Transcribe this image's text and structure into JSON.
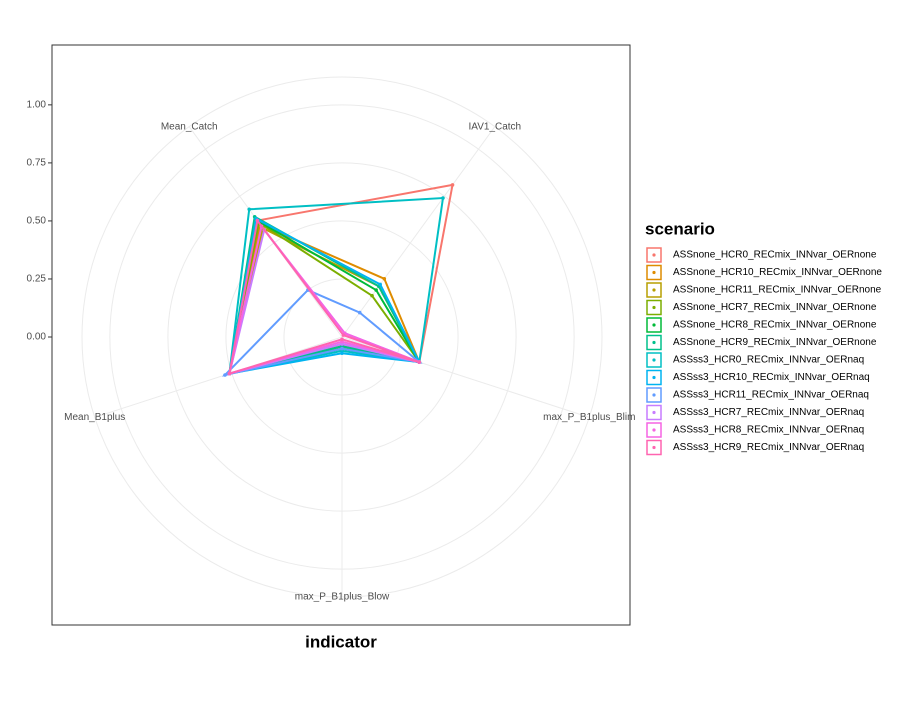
{
  "chart_data": {
    "type": "radar",
    "x_label": "indicator",
    "legend_title": "scenario",
    "categories": [
      "Mean_Catch",
      "IAV1_Catch",
      "max_P_B1plus_Blim",
      "max_P_B1plus_Blow",
      "Mean_B1plus"
    ],
    "ylim": [
      0,
      1.12
    ],
    "yticks": [
      {
        "value": 0,
        "label": "0.00"
      },
      {
        "value": 0.25,
        "label": "0.25"
      },
      {
        "value": 0.5,
        "label": "0.50"
      },
      {
        "value": 0.75,
        "label": "0.75"
      },
      {
        "value": 1,
        "label": "1.00"
      }
    ],
    "grid": true,
    "legend": "right",
    "series": [
      {
        "name": "ASSnone_HCR0_RECmix_INNvar_OERnone",
        "color": "#F8766D",
        "values": [
          0.62,
          0.81,
          0.35,
          0.03,
          0.51
        ]
      },
      {
        "name": "ASSnone_HCR10_RECmix_INNvar_OERnone",
        "color": "#DE8C00",
        "values": [
          0.6,
          0.31,
          0.35,
          0.04,
          0.51
        ]
      },
      {
        "name": "ASSnone_HCR11_RECmix_INNvar_OERnone",
        "color": "#B79F00",
        "values": [
          0.58,
          0.27,
          0.35,
          0.05,
          0.51
        ]
      },
      {
        "name": "ASSnone_HCR7_RECmix_INNvar_OERnone",
        "color": "#7CAE00",
        "values": [
          0.61,
          0.22,
          0.35,
          0.04,
          0.51
        ]
      },
      {
        "name": "ASSnone_HCR8_RECmix_INNvar_OERnone",
        "color": "#00BA38",
        "values": [
          0.62,
          0.25,
          0.35,
          0.05,
          0.51
        ]
      },
      {
        "name": "ASSnone_HCR9_RECmix_INNvar_OERnone",
        "color": "#00C08B",
        "values": [
          0.64,
          0.27,
          0.35,
          0.04,
          0.51
        ]
      },
      {
        "name": "ASSss3_HCR0_RECmix_INNvar_OERnaq",
        "color": "#00BFC4",
        "values": [
          0.68,
          0.74,
          0.35,
          0.06,
          0.51
        ]
      },
      {
        "name": "ASSss3_HCR10_RECmix_INNvar_OERnaq",
        "color": "#00B4F0",
        "values": [
          0.63,
          0.28,
          0.35,
          0.07,
          0.51
        ]
      },
      {
        "name": "ASSss3_HCR11_RECmix_INNvar_OERnaq",
        "color": "#619CFF",
        "values": [
          0.25,
          0.13,
          0.35,
          0.05,
          0.53
        ]
      },
      {
        "name": "ASSss3_HCR7_RECmix_INNvar_OERnaq",
        "color": "#C77CFF",
        "values": [
          0.57,
          0.02,
          0.35,
          0.03,
          0.51
        ]
      },
      {
        "name": "ASSss3_HCR8_RECmix_INNvar_OERnaq",
        "color": "#F564E3",
        "values": [
          0.59,
          0.02,
          0.35,
          0.02,
          0.51
        ]
      },
      {
        "name": "ASSss3_HCR9_RECmix_INNvar_OERnaq",
        "color": "#FF64B0",
        "values": [
          0.62,
          0.01,
          0.35,
          0.01,
          0.51
        ]
      }
    ]
  }
}
